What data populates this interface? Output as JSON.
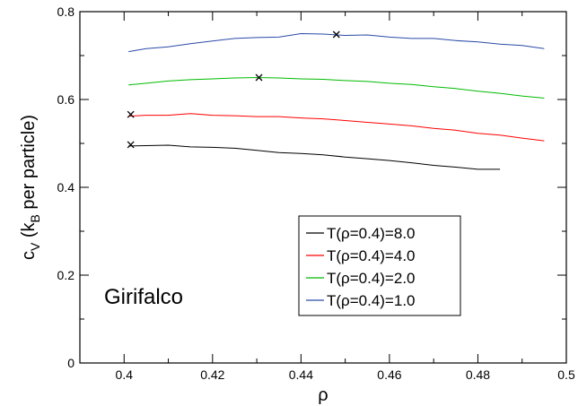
{
  "chart_data": {
    "type": "line",
    "title": "",
    "xlabel": "ρ",
    "ylabel": {
      "main": "c",
      "sub": "V",
      "open": " (k",
      "sub2": "B",
      "rest": " per particle)"
    },
    "xlim": [
      0.39,
      0.5
    ],
    "ylim": [
      0,
      0.8
    ],
    "xticks": [
      0.4,
      0.42,
      0.44,
      0.46,
      0.48,
      0.5
    ],
    "xtick_labels": [
      "0.4",
      "0.42",
      "0.44",
      "0.46",
      "0.48",
      "0.5"
    ],
    "yticks": [
      0,
      0.2,
      0.4,
      0.6,
      0.8
    ],
    "ytick_labels": [
      "0",
      "0.2",
      "0.4",
      "0.6",
      "0.8"
    ],
    "grid": false,
    "legend_position": "bottom-right",
    "annotation": "Girifalco",
    "series": [
      {
        "name": "T(ρ=0.4)=8.0",
        "color": "#000000",
        "x": [
          0.401,
          0.405,
          0.41,
          0.415,
          0.42,
          0.425,
          0.43,
          0.435,
          0.44,
          0.445,
          0.45,
          0.455,
          0.46,
          0.465,
          0.47,
          0.475,
          0.48,
          0.485
        ],
        "y": [
          0.494,
          0.495,
          0.496,
          0.492,
          0.491,
          0.489,
          0.484,
          0.479,
          0.477,
          0.474,
          0.469,
          0.465,
          0.461,
          0.456,
          0.45,
          0.446,
          0.441,
          0.441
        ],
        "marker": {
          "x": 0.4015,
          "y": 0.497
        }
      },
      {
        "name": "T(ρ=0.4)=4.0",
        "color": "#ff0000",
        "x": [
          0.401,
          0.405,
          0.41,
          0.415,
          0.42,
          0.425,
          0.43,
          0.435,
          0.44,
          0.445,
          0.45,
          0.455,
          0.46,
          0.465,
          0.47,
          0.475,
          0.48,
          0.485,
          0.49,
          0.495
        ],
        "y": [
          0.562,
          0.564,
          0.564,
          0.568,
          0.564,
          0.563,
          0.561,
          0.561,
          0.558,
          0.556,
          0.552,
          0.548,
          0.544,
          0.54,
          0.534,
          0.53,
          0.523,
          0.519,
          0.512,
          0.506
        ],
        "marker": {
          "x": 0.4015,
          "y": 0.566
        }
      },
      {
        "name": "T(ρ=0.4)=2.0",
        "color": "#00bb00",
        "x": [
          0.401,
          0.405,
          0.41,
          0.415,
          0.42,
          0.425,
          0.43,
          0.435,
          0.44,
          0.445,
          0.45,
          0.455,
          0.46,
          0.465,
          0.47,
          0.475,
          0.48,
          0.485,
          0.49,
          0.495
        ],
        "y": [
          0.633,
          0.637,
          0.642,
          0.645,
          0.647,
          0.649,
          0.65,
          0.649,
          0.647,
          0.646,
          0.643,
          0.641,
          0.637,
          0.634,
          0.629,
          0.625,
          0.619,
          0.614,
          0.608,
          0.603
        ],
        "marker": {
          "x": 0.4305,
          "y": 0.65
        }
      },
      {
        "name": "T(ρ=0.4)=1.0",
        "color": "#2a4aa8",
        "x": [
          0.401,
          0.405,
          0.41,
          0.415,
          0.42,
          0.425,
          0.43,
          0.435,
          0.44,
          0.445,
          0.45,
          0.455,
          0.46,
          0.465,
          0.47,
          0.475,
          0.48,
          0.485,
          0.49,
          0.495
        ],
        "y": [
          0.709,
          0.716,
          0.72,
          0.727,
          0.733,
          0.739,
          0.741,
          0.742,
          0.75,
          0.749,
          0.746,
          0.747,
          0.742,
          0.739,
          0.739,
          0.734,
          0.731,
          0.726,
          0.723,
          0.716
        ],
        "marker": {
          "x": 0.448,
          "y": 0.748
        }
      }
    ]
  }
}
